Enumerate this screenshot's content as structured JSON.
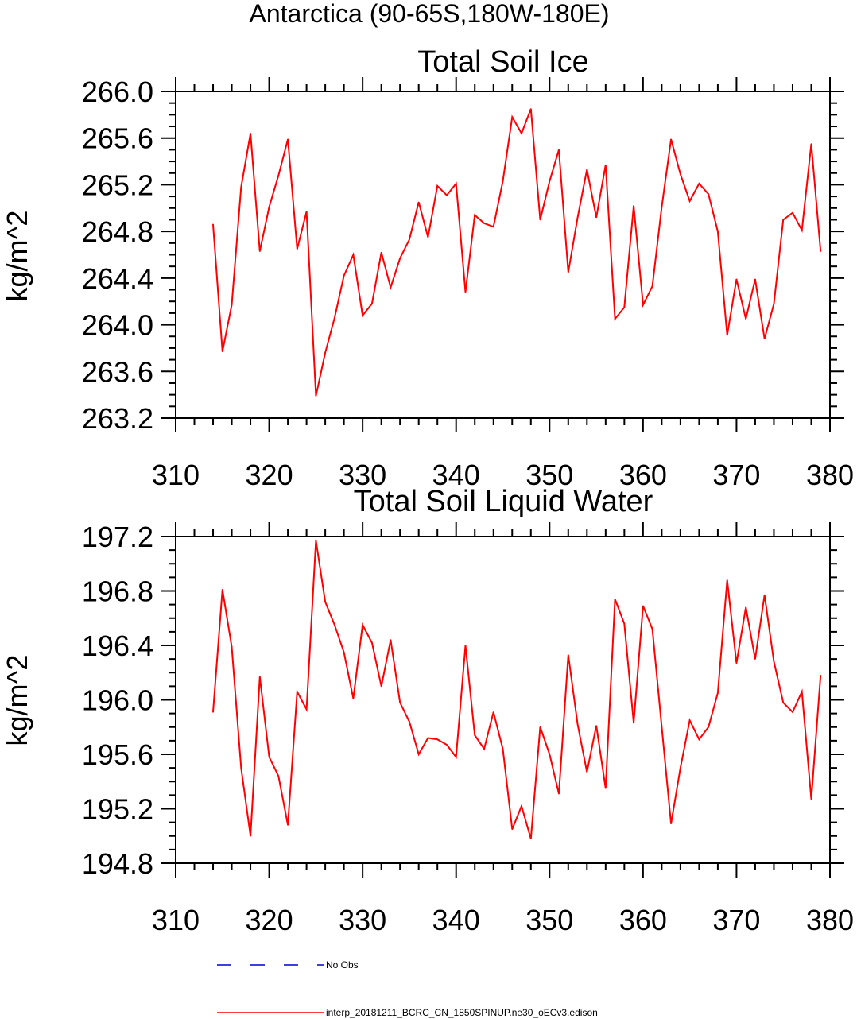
{
  "header": {
    "region_title": "Antarctica (90-65S,180W-180E)"
  },
  "colors": {
    "model_line": "#ff0000",
    "obs_line": "#0000cc",
    "axis": "#000000"
  },
  "legend": {
    "obs_label": "No Obs",
    "model_label": "interp_20181211_BCRC_CN_1850SPINUP.ne30_oECv3.edison"
  },
  "chart_data": [
    {
      "type": "line",
      "title": "Total Soil Ice",
      "xlabel": "",
      "ylabel": "kg/m^2",
      "xlim": [
        310,
        380
      ],
      "ylim": [
        263.2,
        266.0
      ],
      "xticks": [
        "310",
        "320",
        "330",
        "340",
        "350",
        "360",
        "370",
        "380"
      ],
      "yticks": [
        "263.2",
        "263.6",
        "264.0",
        "264.4",
        "264.8",
        "265.2",
        "265.6",
        "266.0"
      ],
      "grid": false,
      "x": [
        314,
        315,
        316,
        317,
        318,
        319,
        320,
        321,
        322,
        323,
        324,
        325,
        326,
        327,
        328,
        329,
        330,
        331,
        332,
        333,
        334,
        335,
        336,
        337,
        338,
        339,
        340,
        341,
        342,
        343,
        344,
        345,
        346,
        347,
        348,
        349,
        350,
        351,
        352,
        353,
        354,
        355,
        356,
        357,
        358,
        359,
        360,
        361,
        362,
        363,
        364,
        365,
        366,
        367,
        368,
        369,
        370,
        371,
        372,
        373,
        374,
        375,
        376,
        377,
        378,
        379
      ],
      "series": [
        {
          "values": [
            264.86,
            263.77,
            264.17,
            265.18,
            265.64,
            264.63,
            265.01,
            265.28,
            265.59,
            264.65,
            264.97,
            263.39,
            263.76,
            264.06,
            264.42,
            264.6,
            264.08,
            264.18,
            264.62,
            264.32,
            264.57,
            264.73,
            265.05,
            264.75,
            265.19,
            265.11,
            265.21,
            264.28,
            264.94,
            264.87,
            264.84,
            265.23,
            265.78,
            265.64,
            265.85,
            264.9,
            265.23,
            265.5,
            264.45,
            264.92,
            265.33,
            264.92,
            265.37,
            264.05,
            264.15,
            265.02,
            264.17,
            264.33,
            265.01,
            265.59,
            265.29,
            265.06,
            265.21,
            265.12,
            264.8,
            263.91,
            264.39,
            264.05,
            264.39,
            263.88,
            264.18,
            264.9,
            264.96,
            264.81,
            265.55,
            264.63
          ]
        }
      ]
    },
    {
      "type": "line",
      "title": "Total Soil Liquid Water",
      "xlabel": "",
      "ylabel": "kg/m^2",
      "xlim": [
        310,
        380
      ],
      "ylim": [
        194.8,
        197.2
      ],
      "xticks": [
        "310",
        "320",
        "330",
        "340",
        "350",
        "360",
        "370",
        "380"
      ],
      "yticks": [
        "194.8",
        "195.2",
        "195.6",
        "196.0",
        "196.4",
        "196.8",
        "197.2"
      ],
      "grid": false,
      "x": [
        314,
        315,
        316,
        317,
        318,
        319,
        320,
        321,
        322,
        323,
        324,
        325,
        326,
        327,
        328,
        329,
        330,
        331,
        332,
        333,
        334,
        335,
        336,
        337,
        338,
        339,
        340,
        341,
        342,
        343,
        344,
        345,
        346,
        347,
        348,
        349,
        350,
        351,
        352,
        353,
        354,
        355,
        356,
        357,
        358,
        359,
        360,
        361,
        362,
        363,
        364,
        365,
        366,
        367,
        368,
        369,
        370,
        371,
        372,
        373,
        374,
        375,
        376,
        377,
        378,
        379
      ],
      "series": [
        {
          "values": [
            195.91,
            196.81,
            196.39,
            195.5,
            195.0,
            196.17,
            195.58,
            195.44,
            195.08,
            196.06,
            195.93,
            197.17,
            196.72,
            196.55,
            196.35,
            196.01,
            196.55,
            196.42,
            196.1,
            196.44,
            195.98,
            195.84,
            195.6,
            195.72,
            195.71,
            195.67,
            195.58,
            196.4,
            195.74,
            195.64,
            195.91,
            195.64,
            195.05,
            195.22,
            194.98,
            195.8,
            195.6,
            195.31,
            196.33,
            195.82,
            195.47,
            195.81,
            195.35,
            196.74,
            196.56,
            195.83,
            196.69,
            196.52,
            195.8,
            195.09,
            195.5,
            195.85,
            195.71,
            195.8,
            196.05,
            196.88,
            196.27,
            196.68,
            196.3,
            196.77,
            196.28,
            195.98,
            195.91,
            196.06,
            195.27,
            196.18
          ]
        }
      ]
    }
  ]
}
